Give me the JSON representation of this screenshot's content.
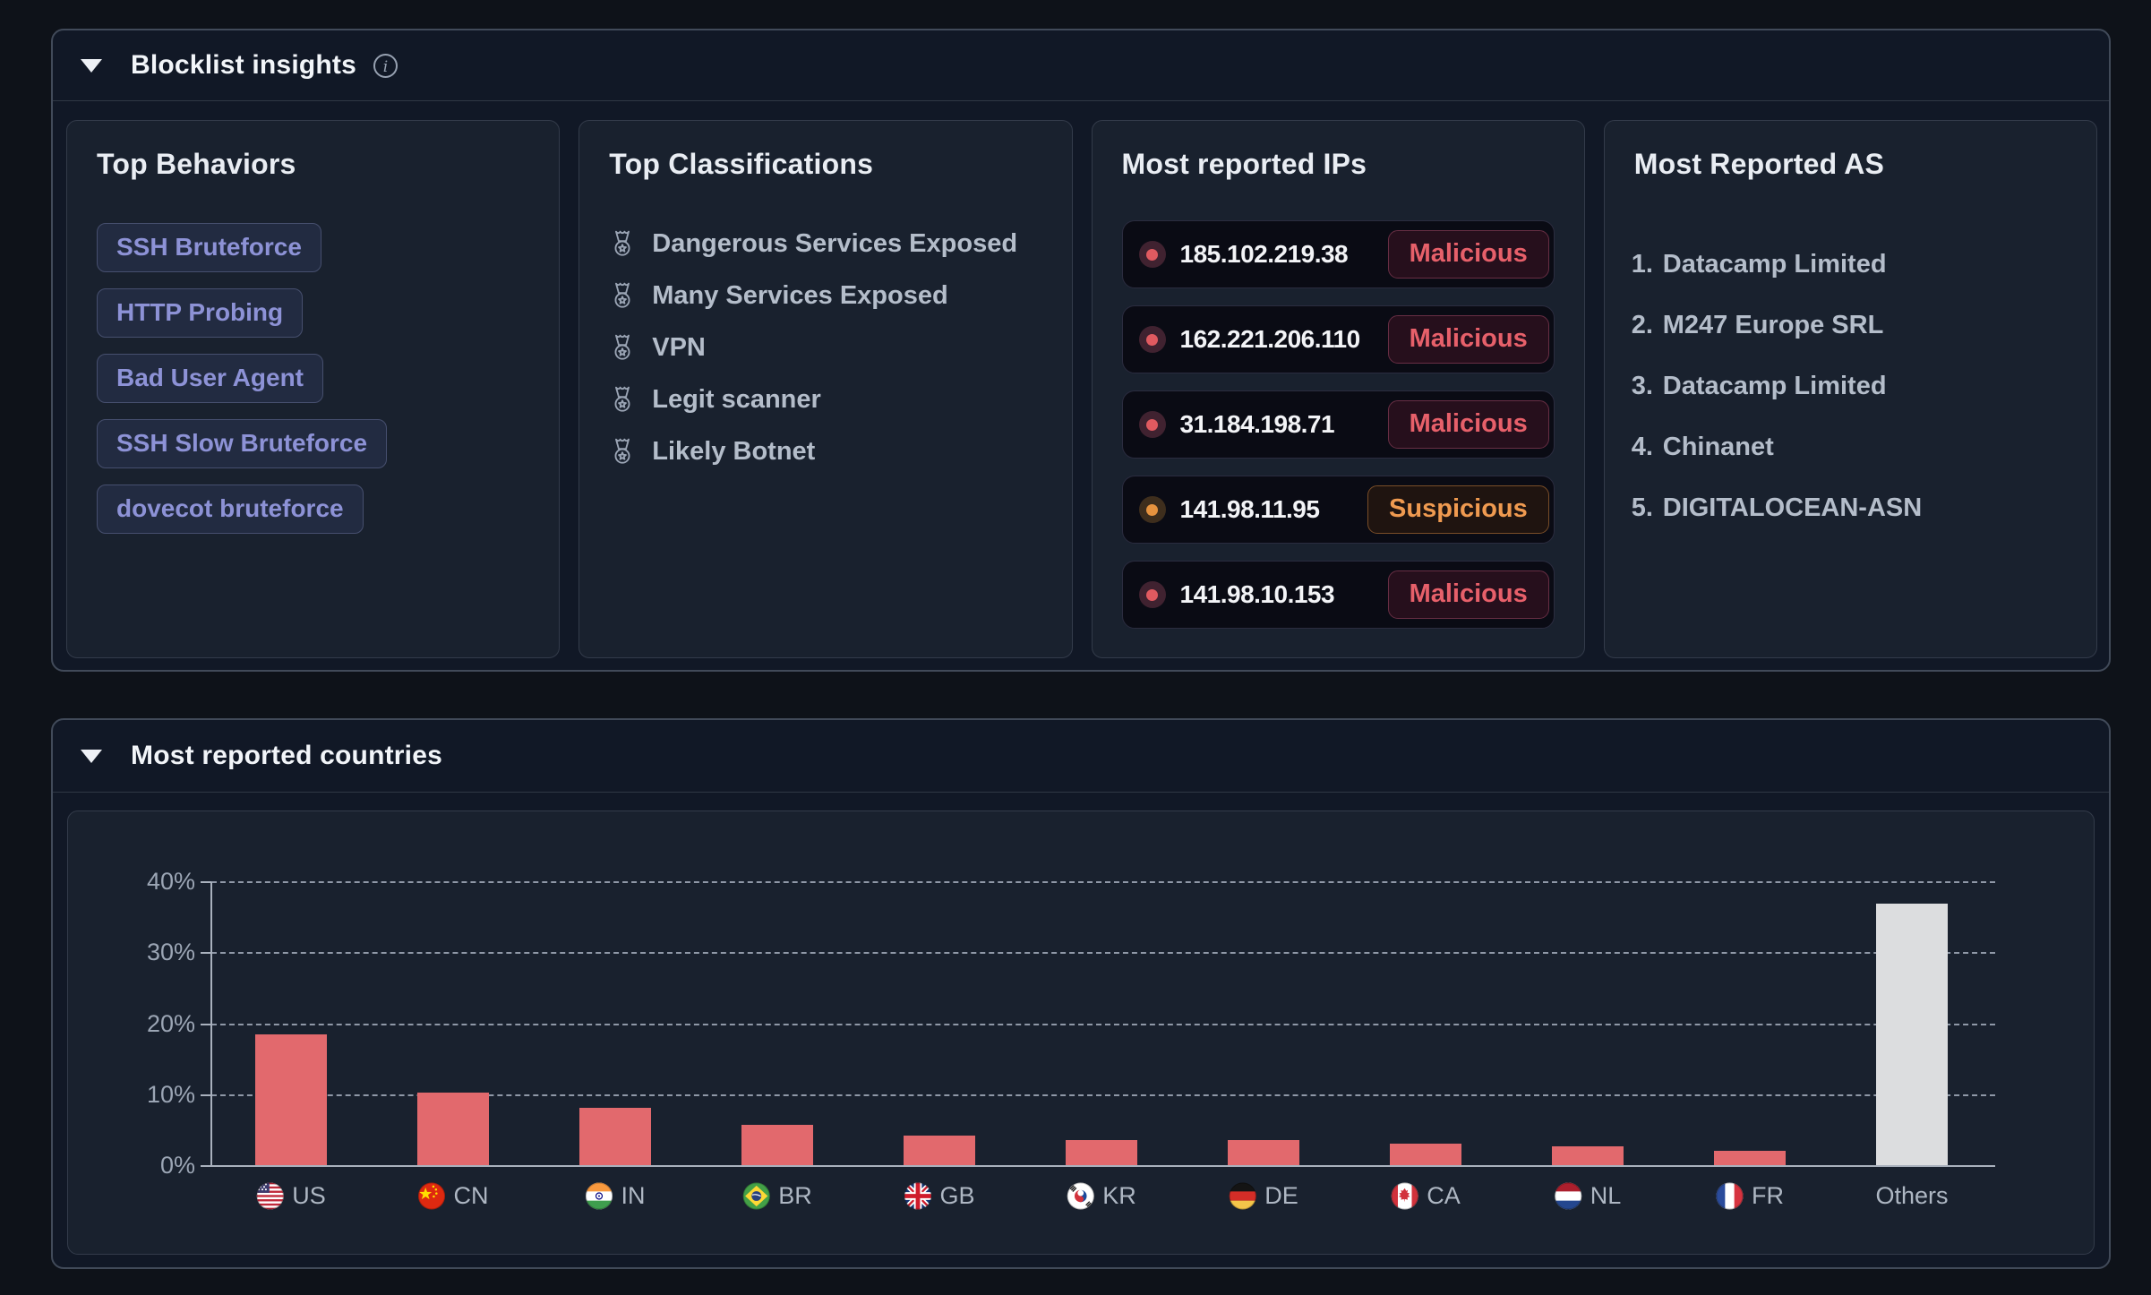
{
  "blocklist_panel": {
    "title": "Blocklist insights",
    "behaviors": {
      "title": "Top Behaviors",
      "tags": [
        "SSH Bruteforce",
        "HTTP Probing",
        "Bad User Agent",
        "SSH Slow Bruteforce",
        "dovecot bruteforce"
      ]
    },
    "classifications": {
      "title": "Top Classifications",
      "items": [
        "Dangerous Services Exposed",
        "Many Services Exposed",
        "VPN",
        "Legit scanner",
        "Likely Botnet"
      ]
    },
    "reported_ips": {
      "title": "Most reported IPs",
      "rows": [
        {
          "ip": "185.102.219.38",
          "status": "Malicious"
        },
        {
          "ip": "162.221.206.110",
          "status": "Malicious"
        },
        {
          "ip": "31.184.198.71",
          "status": "Malicious"
        },
        {
          "ip": "141.98.11.95",
          "status": "Suspicious"
        },
        {
          "ip": "141.98.10.153",
          "status": "Malicious"
        }
      ]
    },
    "reported_as": {
      "title": "Most Reported AS",
      "items": [
        "Datacamp Limited",
        "M247 Europe SRL",
        "Datacamp Limited",
        "Chinanet",
        "DIGITALOCEAN-ASN"
      ]
    }
  },
  "countries_panel": {
    "title": "Most reported countries"
  },
  "chart_data": {
    "type": "bar",
    "title": "Most reported countries",
    "categories": [
      "US",
      "CN",
      "IN",
      "BR",
      "GB",
      "KR",
      "DE",
      "CA",
      "NL",
      "FR",
      "Others"
    ],
    "values": [
      18.5,
      10.3,
      8.2,
      5.8,
      4.3,
      3.6,
      3.6,
      3.2,
      2.8,
      2.1,
      36.9
    ],
    "flags": [
      "us",
      "cn",
      "in",
      "br",
      "gb",
      "kr",
      "de",
      "ca",
      "nl",
      "fr",
      null
    ],
    "xlabel": "",
    "ylabel": "",
    "ylim": [
      0,
      40
    ],
    "yticks": [
      "0%",
      "10%",
      "20%",
      "30%",
      "40%"
    ],
    "grid": "horizontal-dashed",
    "legend": false,
    "bar_color": "#e2696d",
    "others_color": "#dcdddf"
  },
  "colors": {
    "background": "#0e1219",
    "panel": "#111826",
    "card": "#19212e",
    "accent_red": "#e2696d",
    "accent_orange": "#e6933f",
    "chip_text": "#8d92d6"
  }
}
